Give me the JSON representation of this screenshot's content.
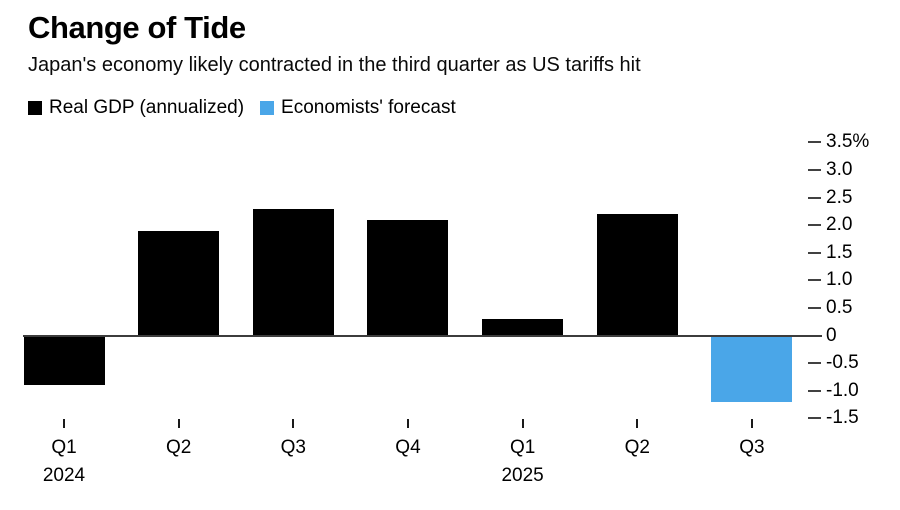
{
  "chart_data": {
    "type": "bar",
    "title": "Change of Tide",
    "subtitle": "Japan's economy likely contracted in the third quarter as US tariffs hit",
    "unit": "%",
    "categories": [
      "Q1 2024",
      "Q2 2024",
      "Q3 2024",
      "Q4 2024",
      "Q1 2025",
      "Q2 2025",
      "Q3 2025"
    ],
    "x_tick_labels": [
      "Q1",
      "Q2",
      "Q3",
      "Q4",
      "Q1",
      "Q2",
      "Q3"
    ],
    "x_year_labels": [
      {
        "index": 0,
        "label": "2024"
      },
      {
        "index": 4,
        "label": "2025"
      }
    ],
    "series": [
      {
        "name": "Real GDP (annualized)",
        "color": "#000000",
        "values": [
          -0.9,
          1.9,
          2.3,
          2.1,
          0.3,
          2.2,
          null
        ]
      },
      {
        "name": "Economists' forecast",
        "color": "#4AA6E8",
        "values": [
          null,
          null,
          null,
          null,
          null,
          null,
          -1.2
        ]
      }
    ],
    "ylim": [
      -1.5,
      3.5
    ],
    "y_ticks": [
      {
        "value": 3.5,
        "label": "3.5%"
      },
      {
        "value": 3.0,
        "label": "3.0"
      },
      {
        "value": 2.5,
        "label": "2.5"
      },
      {
        "value": 2.0,
        "label": "2.0"
      },
      {
        "value": 1.5,
        "label": "1.5"
      },
      {
        "value": 1.0,
        "label": "1.0"
      },
      {
        "value": 0.5,
        "label": "0.5"
      },
      {
        "value": 0,
        "label": "0"
      },
      {
        "value": -0.5,
        "label": "-0.5"
      },
      {
        "value": -1.0,
        "label": "-1.0"
      },
      {
        "value": -1.5,
        "label": "-1.5"
      }
    ],
    "grid": false,
    "axis_side": "right",
    "legend_position": "top-left"
  }
}
